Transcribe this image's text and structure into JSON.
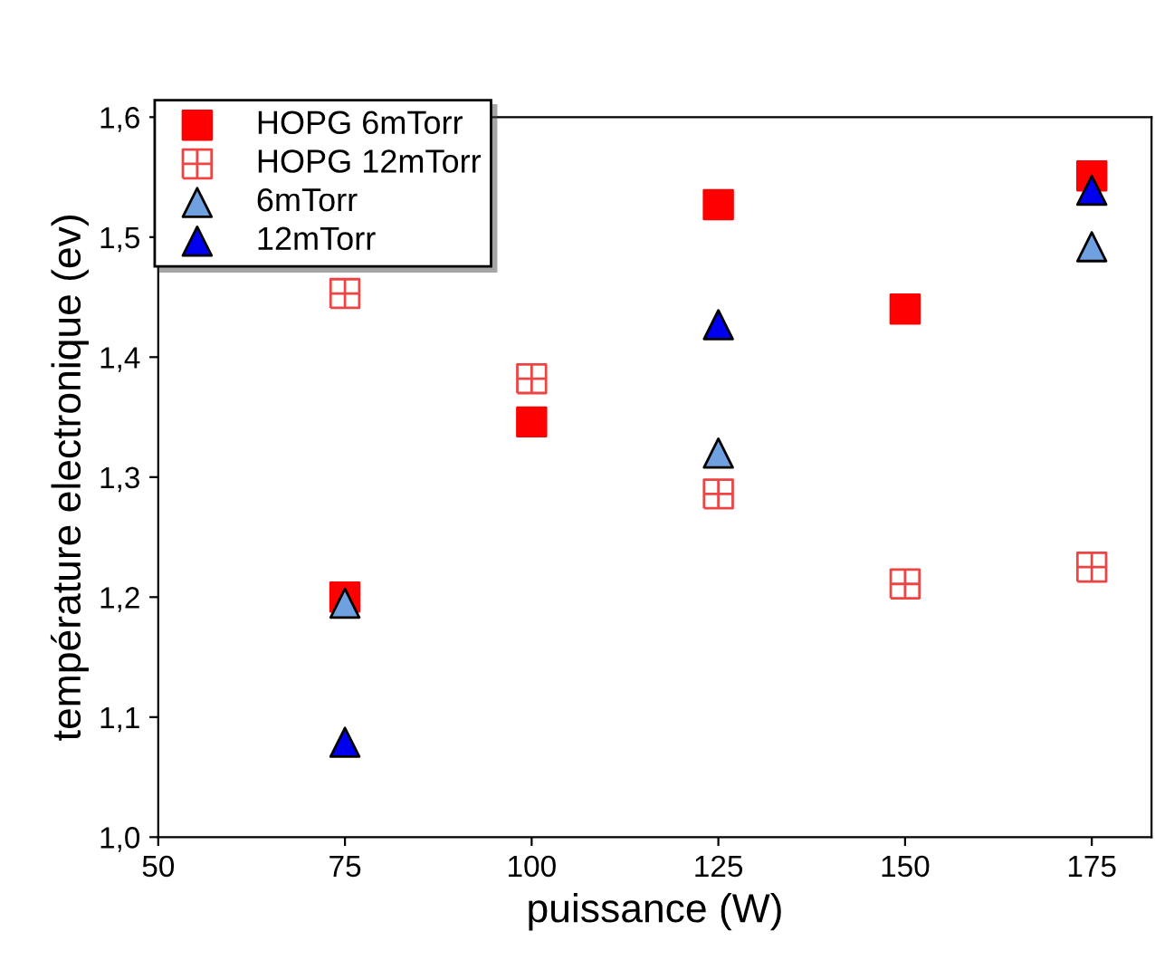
{
  "chart_data": {
    "type": "scatter",
    "xlabel": "puissance (W)",
    "ylabel": "température electronique (ev)",
    "xlim": [
      50,
      183
    ],
    "xticks": [
      50,
      75,
      100,
      125,
      150,
      175
    ],
    "ylim": [
      1.0,
      1.6
    ],
    "yticks": [
      {
        "value": 1.0,
        "label": "1,0"
      },
      {
        "value": 1.1,
        "label": "1,1"
      },
      {
        "value": 1.2,
        "label": "1,2"
      },
      {
        "value": 1.3,
        "label": "1,3"
      },
      {
        "value": 1.4,
        "label": "1,4"
      },
      {
        "value": 1.5,
        "label": "1,5"
      },
      {
        "value": 1.6,
        "label": "1,6"
      }
    ],
    "legend": "top left",
    "grid": false,
    "series": [
      {
        "name": "HOPG 6mTorr",
        "color": "#ff0000",
        "marker": "square",
        "x": [
          75,
          100,
          125,
          150,
          175
        ],
        "values": [
          1.2,
          1.346,
          1.527,
          1.44,
          1.551
        ]
      },
      {
        "name": "HOPG 12mTorr",
        "color": "#ee4444",
        "marker": "cross",
        "x": [
          75,
          100,
          125,
          150,
          175
        ],
        "values": [
          1.453,
          1.382,
          1.286,
          1.211,
          1.225
        ]
      },
      {
        "name": "6mTorr",
        "color": "#6fa0e0",
        "marker": "triangle",
        "x": [
          75,
          125,
          175
        ],
        "values": [
          1.195,
          1.32,
          1.492
        ]
      },
      {
        "name": "12mTorr",
        "color": "#0000ee",
        "marker": "triangle",
        "x": [
          75,
          125,
          175
        ],
        "values": [
          1.079,
          1.427,
          1.539
        ]
      }
    ]
  }
}
